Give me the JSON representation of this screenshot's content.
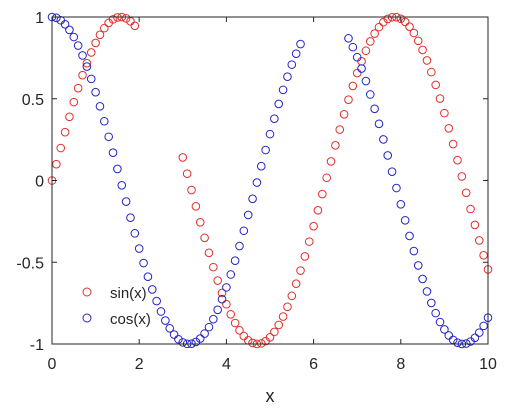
{
  "chart_data": {
    "type": "scatter",
    "xlabel": "x",
    "ylabel": "",
    "xlim": [
      0,
      10
    ],
    "ylim": [
      -1,
      1
    ],
    "xticks": [
      0,
      2,
      4,
      6,
      8,
      10
    ],
    "yticks": [
      -1,
      -0.5,
      0,
      0.5,
      1
    ],
    "xtick_labels": [
      "0",
      "2",
      "4",
      "6",
      "8",
      "10"
    ],
    "ytick_labels": [
      "-1",
      "-0.5",
      "0",
      "0.5",
      "1"
    ],
    "grid": false,
    "legend_position": "bottom-left",
    "series": [
      {
        "name": "sin(x)",
        "color": "#e0302b",
        "marker": "open-circle",
        "segments": [
          {
            "function": "sin",
            "x_start": 0.0,
            "x_end": 1.9,
            "step": 0.1
          },
          {
            "function": "sin",
            "x_start": 3.0,
            "x_end": 10.0,
            "step": 0.1
          }
        ]
      },
      {
        "name": "cos(x)",
        "color": "#2424c8",
        "marker": "open-circle",
        "segments": [
          {
            "function": "cos",
            "x_start": 0.0,
            "x_end": 5.7,
            "step": 0.1
          },
          {
            "function": "cos",
            "x_start": 6.8,
            "x_end": 10.0,
            "step": 0.1
          }
        ]
      }
    ]
  }
}
